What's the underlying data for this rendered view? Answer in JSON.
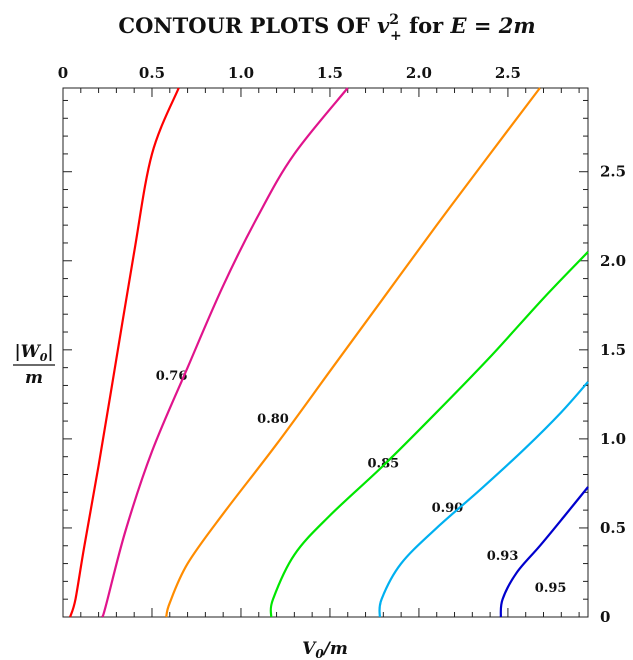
{
  "chart_data": {
    "type": "line",
    "title_prefix": "CONTOUR PLOTS OF ",
    "title_var": "v",
    "title_sup": "2",
    "title_sub": "+",
    "title_mid": " for ",
    "title_eq": "E = 2m",
    "xlabel": "V",
    "xlabel_sub": "0",
    "xlabel_den": "/m",
    "ylabel_num": "|W",
    "ylabel_num_sub": "0",
    "ylabel_num_end": "|",
    "ylabel_den": "m",
    "xlim": [
      0,
      2.95
    ],
    "ylim": [
      0,
      2.97
    ],
    "x_ticks": [
      "0",
      "0.5",
      "1.0",
      "1.5",
      "2.0",
      "2.5"
    ],
    "x_tick_values": [
      0,
      0.5,
      1.0,
      1.5,
      2.0,
      2.5
    ],
    "y_ticks": [
      "0",
      "0.5",
      "1.0",
      "1.5",
      "2.0",
      "2.5"
    ],
    "y_tick_values": [
      0,
      0.5,
      1.0,
      1.5,
      2.0,
      2.5
    ],
    "x_axis_position": "top",
    "y_axis_position": "right",
    "grid": false,
    "series": [
      {
        "name": "0.76",
        "color": "#ff0000",
        "label_at": [
          0.61,
          1.33
        ],
        "points": [
          [
            0.04,
            0
          ],
          [
            0.07,
            0.1
          ],
          [
            0.12,
            0.4
          ],
          [
            0.2,
            0.85
          ],
          [
            0.3,
            1.45
          ],
          [
            0.4,
            2.05
          ],
          [
            0.5,
            2.6
          ],
          [
            0.65,
            2.97
          ]
        ]
      },
      {
        "name": "0.80",
        "color": "#e0148c",
        "label_at": [
          1.18,
          1.09
        ],
        "points": [
          [
            0.22,
            0
          ],
          [
            0.24,
            0.06
          ],
          [
            0.35,
            0.48
          ],
          [
            0.5,
            0.93
          ],
          [
            0.7,
            1.4
          ],
          [
            0.9,
            1.86
          ],
          [
            1.1,
            2.26
          ],
          [
            1.3,
            2.6
          ],
          [
            1.6,
            2.97
          ]
        ]
      },
      {
        "name": "0.85",
        "color": "#ff8c00",
        "label_at": [
          1.8,
          0.84
        ],
        "points": [
          [
            0.58,
            0
          ],
          [
            0.6,
            0.08
          ],
          [
            0.7,
            0.3
          ],
          [
            0.9,
            0.58
          ],
          [
            1.2,
            0.97
          ],
          [
            1.5,
            1.38
          ],
          [
            1.8,
            1.79
          ],
          [
            2.1,
            2.2
          ],
          [
            2.4,
            2.6
          ],
          [
            2.68,
            2.97
          ]
        ]
      },
      {
        "name": "0.90",
        "color": "#00e600",
        "label_at": [
          2.16,
          0.59
        ],
        "points": [
          [
            1.17,
            0
          ],
          [
            1.18,
            0.1
          ],
          [
            1.3,
            0.35
          ],
          [
            1.5,
            0.57
          ],
          [
            1.8,
            0.85
          ],
          [
            2.1,
            1.15
          ],
          [
            2.4,
            1.46
          ],
          [
            2.7,
            1.79
          ],
          [
            2.95,
            2.05
          ]
        ]
      },
      {
        "name": "0.93",
        "color": "#00b0f0",
        "label_at": [
          2.47,
          0.32
        ],
        "points": [
          [
            1.78,
            0
          ],
          [
            1.79,
            0.1
          ],
          [
            1.9,
            0.3
          ],
          [
            2.1,
            0.5
          ],
          [
            2.35,
            0.72
          ],
          [
            2.6,
            0.95
          ],
          [
            2.8,
            1.15
          ],
          [
            2.95,
            1.32
          ]
        ]
      },
      {
        "name": "0.95",
        "color": "#0000cd",
        "label_at": [
          2.74,
          0.14
        ],
        "points": [
          [
            2.46,
            0
          ],
          [
            2.47,
            0.1
          ],
          [
            2.55,
            0.25
          ],
          [
            2.68,
            0.4
          ],
          [
            2.82,
            0.57
          ],
          [
            2.95,
            0.73
          ]
        ]
      }
    ]
  }
}
